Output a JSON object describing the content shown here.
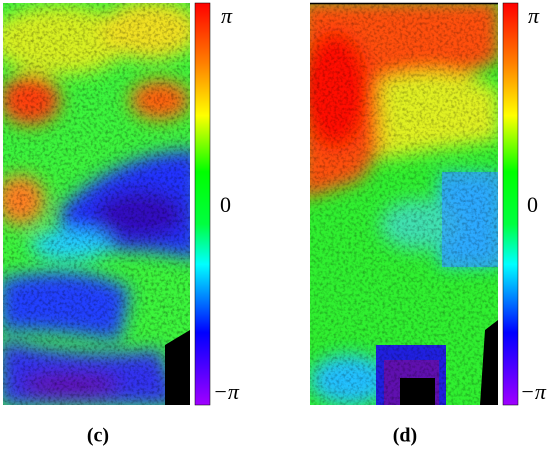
{
  "panels": [
    {
      "label": "(c)",
      "colorbar": {
        "ticks": [
          "π",
          "0",
          "−π"
        ]
      }
    },
    {
      "label": "(d)",
      "colorbar": {
        "ticks": [
          "π",
          "0",
          "−π"
        ]
      }
    }
  ]
}
